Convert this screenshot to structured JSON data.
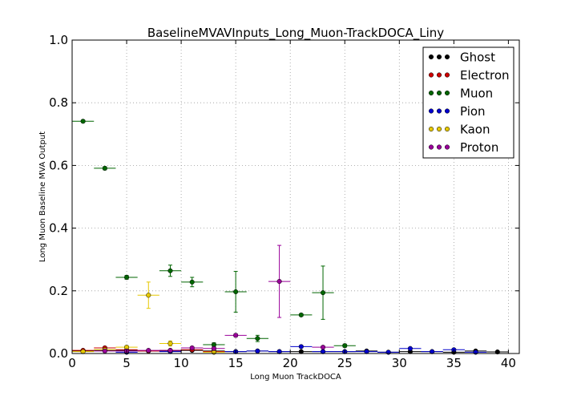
{
  "chart_data": {
    "type": "scatter",
    "title": "BaselineMVAVInputs_Long_Muon-TrackDOCA_Liny",
    "xlabel": "Long Muon TrackDOCA",
    "ylabel": "Long Muon Baseline MVA Output",
    "xlim": [
      0,
      41
    ],
    "ylim": [
      0,
      1.0
    ],
    "xticks": [
      "0",
      "5",
      "10",
      "15",
      "20",
      "25",
      "30",
      "35",
      "40"
    ],
    "yticks": [
      "0.0",
      "0.2",
      "0.4",
      "0.6",
      "0.8",
      "1.0"
    ],
    "grid": true,
    "legend_position": "top-right",
    "series": [
      {
        "name": "Ghost",
        "color": "#000000",
        "points": [
          {
            "x": 1.0,
            "y": 0.008,
            "xerr": 1.0,
            "yerr": 0.002
          },
          {
            "x": 3.0,
            "y": 0.01,
            "xerr": 1.0,
            "yerr": 0.002
          },
          {
            "x": 5.0,
            "y": 0.01,
            "xerr": 1.0,
            "yerr": 0.002
          },
          {
            "x": 7.0,
            "y": 0.008,
            "xerr": 1.0,
            "yerr": 0.002
          },
          {
            "x": 9.0,
            "y": 0.008,
            "xerr": 1.0,
            "yerr": 0.002
          },
          {
            "x": 11.0,
            "y": 0.01,
            "xerr": 1.0,
            "yerr": 0.002
          },
          {
            "x": 13.0,
            "y": 0.008,
            "xerr": 1.0,
            "yerr": 0.002
          },
          {
            "x": 15.0,
            "y": 0.006,
            "xerr": 1.0,
            "yerr": 0.002
          },
          {
            "x": 17.0,
            "y": 0.008,
            "xerr": 1.0,
            "yerr": 0.002
          },
          {
            "x": 19.0,
            "y": 0.006,
            "xerr": 1.0,
            "yerr": 0.002
          },
          {
            "x": 21.0,
            "y": 0.006,
            "xerr": 1.0,
            "yerr": 0.002
          },
          {
            "x": 23.0,
            "y": 0.006,
            "xerr": 1.0,
            "yerr": 0.002
          },
          {
            "x": 25.0,
            "y": 0.006,
            "xerr": 1.0,
            "yerr": 0.002
          },
          {
            "x": 27.0,
            "y": 0.008,
            "xerr": 1.0,
            "yerr": 0.002
          },
          {
            "x": 29.0,
            "y": 0.004,
            "xerr": 1.0,
            "yerr": 0.002
          },
          {
            "x": 31.0,
            "y": 0.006,
            "xerr": 1.0,
            "yerr": 0.002
          },
          {
            "x": 33.0,
            "y": 0.006,
            "xerr": 1.0,
            "yerr": 0.002
          },
          {
            "x": 35.0,
            "y": 0.004,
            "xerr": 1.0,
            "yerr": 0.002
          },
          {
            "x": 37.0,
            "y": 0.008,
            "xerr": 1.0,
            "yerr": 0.002
          },
          {
            "x": 39.0,
            "y": 0.005,
            "xerr": 1.0,
            "yerr": 0.002
          }
        ]
      },
      {
        "name": "Electron",
        "color": "#cc0000",
        "points": [
          {
            "x": 1.0,
            "y": 0.01,
            "xerr": 1.0,
            "yerr": 0.003
          },
          {
            "x": 3.0,
            "y": 0.018,
            "xerr": 1.0,
            "yerr": 0.004
          },
          {
            "x": 5.0,
            "y": 0.012,
            "xerr": 1.0,
            "yerr": 0.004
          },
          {
            "x": 7.0,
            "y": 0.008,
            "xerr": 1.0,
            "yerr": 0.003
          },
          {
            "x": 9.0,
            "y": 0.01,
            "xerr": 1.0,
            "yerr": 0.003
          },
          {
            "x": 11.0,
            "y": 0.012,
            "xerr": 1.0,
            "yerr": 0.003
          },
          {
            "x": 13.0,
            "y": 0.006,
            "xerr": 1.0,
            "yerr": 0.003
          }
        ]
      },
      {
        "name": "Muon",
        "color": "#006600",
        "points": [
          {
            "x": 1.0,
            "y": 0.741,
            "xerr": 1.0,
            "yerr": 0.004
          },
          {
            "x": 3.0,
            "y": 0.591,
            "xerr": 1.0,
            "yerr": 0.005
          },
          {
            "x": 5.0,
            "y": 0.243,
            "xerr": 1.0,
            "yerr": 0.006
          },
          {
            "x": 9.0,
            "y": 0.264,
            "xerr": 1.0,
            "yerr": 0.018
          },
          {
            "x": 11.0,
            "y": 0.228,
            "xerr": 1.0,
            "yerr": 0.015
          },
          {
            "x": 13.0,
            "y": 0.028,
            "xerr": 1.0,
            "yerr": 0.006
          },
          {
            "x": 15.0,
            "y": 0.197,
            "xerr": 1.0,
            "yerr": 0.065
          },
          {
            "x": 17.0,
            "y": 0.048,
            "xerr": 1.0,
            "yerr": 0.01
          },
          {
            "x": 21.0,
            "y": 0.123,
            "xerr": 1.0,
            "yerr": 0.004
          },
          {
            "x": 23.0,
            "y": 0.194,
            "xerr": 1.0,
            "yerr": 0.085
          },
          {
            "x": 25.0,
            "y": 0.025,
            "xerr": 1.0,
            "yerr": 0.005
          }
        ]
      },
      {
        "name": "Pion",
        "color": "#0000cc",
        "points": [
          {
            "x": 5.0,
            "y": 0.004,
            "xerr": 1.0,
            "yerr": 0.002
          },
          {
            "x": 9.0,
            "y": 0.006,
            "xerr": 1.0,
            "yerr": 0.002
          },
          {
            "x": 15.0,
            "y": 0.006,
            "xerr": 1.0,
            "yerr": 0.002
          },
          {
            "x": 17.0,
            "y": 0.008,
            "xerr": 1.0,
            "yerr": 0.002
          },
          {
            "x": 19.0,
            "y": 0.006,
            "xerr": 1.0,
            "yerr": 0.002
          },
          {
            "x": 21.0,
            "y": 0.022,
            "xerr": 1.0,
            "yerr": 0.004
          },
          {
            "x": 23.0,
            "y": 0.006,
            "xerr": 1.0,
            "yerr": 0.002
          },
          {
            "x": 25.0,
            "y": 0.006,
            "xerr": 1.0,
            "yerr": 0.002
          },
          {
            "x": 27.0,
            "y": 0.006,
            "xerr": 1.0,
            "yerr": 0.002
          },
          {
            "x": 29.0,
            "y": 0.004,
            "xerr": 1.0,
            "yerr": 0.002
          },
          {
            "x": 31.0,
            "y": 0.016,
            "xerr": 1.0,
            "yerr": 0.003
          },
          {
            "x": 33.0,
            "y": 0.006,
            "xerr": 1.0,
            "yerr": 0.002
          },
          {
            "x": 35.0,
            "y": 0.012,
            "xerr": 1.0,
            "yerr": 0.003
          },
          {
            "x": 37.0,
            "y": 0.004,
            "xerr": 1.0,
            "yerr": 0.002
          }
        ]
      },
      {
        "name": "Kaon",
        "color": "#e6c800",
        "points": [
          {
            "x": 1.0,
            "y": 0.006,
            "xerr": 1.0,
            "yerr": 0.002
          },
          {
            "x": 3.0,
            "y": 0.012,
            "xerr": 1.0,
            "yerr": 0.003
          },
          {
            "x": 5.0,
            "y": 0.02,
            "xerr": 1.0,
            "yerr": 0.005
          },
          {
            "x": 7.0,
            "y": 0.186,
            "xerr": 1.0,
            "yerr": 0.042
          },
          {
            "x": 9.0,
            "y": 0.032,
            "xerr": 1.0,
            "yerr": 0.008
          },
          {
            "x": 13.0,
            "y": 0.004,
            "xerr": 1.0,
            "yerr": 0.002
          }
        ]
      },
      {
        "name": "Proton",
        "color": "#990099",
        "points": [
          {
            "x": 3.0,
            "y": 0.008,
            "xerr": 1.0,
            "yerr": 0.003
          },
          {
            "x": 5.0,
            "y": 0.008,
            "xerr": 1.0,
            "yerr": 0.003
          },
          {
            "x": 7.0,
            "y": 0.01,
            "xerr": 1.0,
            "yerr": 0.003
          },
          {
            "x": 9.0,
            "y": 0.01,
            "xerr": 1.0,
            "yerr": 0.003
          },
          {
            "x": 11.0,
            "y": 0.018,
            "xerr": 1.0,
            "yerr": 0.004
          },
          {
            "x": 13.0,
            "y": 0.016,
            "xerr": 1.0,
            "yerr": 0.004
          },
          {
            "x": 15.0,
            "y": 0.058,
            "xerr": 1.0,
            "yerr": 0.005
          },
          {
            "x": 19.0,
            "y": 0.23,
            "xerr": 1.0,
            "yerr": 0.115
          },
          {
            "x": 23.0,
            "y": 0.02,
            "xerr": 1.0,
            "yerr": 0.004
          }
        ]
      }
    ]
  }
}
